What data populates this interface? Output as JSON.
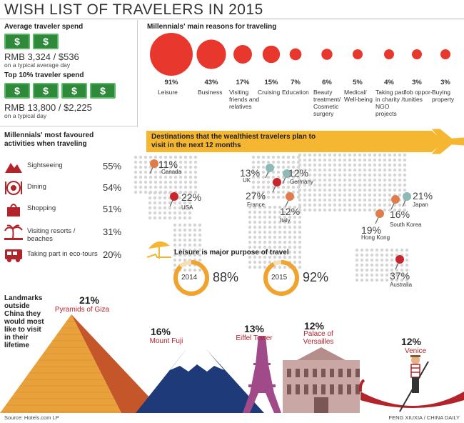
{
  "title": "WISH LIST OF TRAVELERS IN 2015",
  "spend": {
    "avg_heading": "Average traveler spend",
    "avg_amount": "RMB 3,324 / $536",
    "avg_sub": "on a typical average day",
    "top_heading": "Top 10% traveler spend",
    "top_amount": "RMB 13,800 / $2,225",
    "top_sub": "on a typical day",
    "bill_symbol": "$",
    "bill_color": "#2e8a3a"
  },
  "reasons": {
    "heading": "Millennials' main reasons for traveling",
    "color": "#e8382e",
    "items": [
      {
        "pct": "91%",
        "value": 91,
        "label": "Leisure"
      },
      {
        "pct": "43%",
        "value": 43,
        "label": "Business"
      },
      {
        "pct": "17%",
        "value": 17,
        "label": "Visiting friends and relatives"
      },
      {
        "pct": "15%",
        "value": 15,
        "label": "Cruising"
      },
      {
        "pct": "7%",
        "value": 7,
        "label": "Education"
      },
      {
        "pct": "6%",
        "value": 6,
        "label": "Beauty treatment/ Cosmetic surgery"
      },
      {
        "pct": "5%",
        "value": 5,
        "label": "Medical/ Well-being"
      },
      {
        "pct": "4%",
        "value": 4,
        "label": "Taking part in charity / NGO projects"
      },
      {
        "pct": "3%",
        "value": 3,
        "label": "Job oppor- tunities"
      },
      {
        "pct": "3%",
        "value": 3,
        "label": "Buying property"
      }
    ]
  },
  "activities": {
    "heading1": "Millennials' most favoured",
    "heading2": "activities when traveling",
    "icon_color": "#b3242a",
    "items": [
      {
        "label": "Sightseeing",
        "pct": "55%",
        "icon": "mountain-icon"
      },
      {
        "label": "Dining",
        "pct": "54%",
        "icon": "plate-icon"
      },
      {
        "label": "Shopping",
        "pct": "51%",
        "icon": "shopping-bag-icon"
      },
      {
        "label": "Visiting resorts / beaches",
        "pct": "31%",
        "icon": "palm-tree-icon"
      },
      {
        "label": "Taking part in eco-tours",
        "pct": "20%",
        "icon": "bus-icon"
      }
    ]
  },
  "destinations": {
    "banner1": "Destinations that the wealthiest travelers plan to",
    "banner2": "visit in the next 12 months",
    "banner_color": "#f5b731",
    "items": [
      {
        "name": "Canada",
        "pct": "11%",
        "value": 11
      },
      {
        "name": "USA",
        "pct": "22%",
        "value": 22
      },
      {
        "name": "UK",
        "pct": "13%",
        "value": 13
      },
      {
        "name": "Germany",
        "pct": "12%",
        "value": 12
      },
      {
        "name": "France",
        "pct": "27%",
        "value": 27
      },
      {
        "name": "Italy",
        "pct": "12%",
        "value": 12
      },
      {
        "name": "Japan",
        "pct": "21%",
        "value": 21
      },
      {
        "name": "South Korea",
        "pct": "16%",
        "value": 16
      },
      {
        "name": "Hong Kong",
        "pct": "19%",
        "value": 19
      },
      {
        "name": "Australia",
        "pct": "37%",
        "value": 37
      }
    ]
  },
  "leisure": {
    "heading": "Leisure is major purpose of travel",
    "ring_color": "#f0a32e",
    "years": [
      {
        "year": "2014",
        "pct": "88%",
        "value": 88
      },
      {
        "year": "2015",
        "pct": "92%",
        "value": 92
      }
    ]
  },
  "landmarks": {
    "heading": "Landmarks outside China they would most like to visit in their lifetime",
    "heading_lines": [
      "Landmarks",
      "outside",
      "China they",
      "would most",
      "like to visit",
      "in their",
      "lifetime"
    ],
    "items": [
      {
        "name": "Pyramids of Giza",
        "pct": "21%",
        "value": 21
      },
      {
        "name": "Mount Fuji",
        "pct": "16%",
        "value": 16
      },
      {
        "name": "Eiffel Tower",
        "pct": "13%",
        "value": 13
      },
      {
        "name": "Palace of Versailles",
        "name_lines": [
          "Palace of",
          "Versailles"
        ],
        "pct": "12%",
        "value": 12
      },
      {
        "name": "Venice",
        "pct": "12%",
        "value": 12
      }
    ]
  },
  "footer": {
    "source": "Source: Hotels.com LP",
    "credit": "FENG XIUXIA / CHINA DAILY"
  },
  "chart_data": [
    {
      "type": "bubble",
      "title": "Millennials' main reasons for traveling",
      "categories": [
        "Leisure",
        "Business",
        "Visiting friends and relatives",
        "Cruising",
        "Education",
        "Beauty treatment/ Cosmetic surgery",
        "Medical/ Well-being",
        "Taking part in charity / NGO projects",
        "Job oppor- tunities",
        "Buying property"
      ],
      "values": [
        91,
        43,
        17,
        15,
        7,
        6,
        5,
        4,
        3,
        3
      ]
    },
    {
      "type": "table",
      "title": "Millennials' most favoured activities when traveling",
      "categories": [
        "Sightseeing",
        "Dining",
        "Shopping",
        "Visiting resorts / beaches",
        "Taking part in eco-tours"
      ],
      "values": [
        55,
        54,
        51,
        31,
        20
      ]
    },
    {
      "type": "map",
      "title": "Destinations that the wealthiest travelers plan to visit in the next 12 months",
      "categories": [
        "Canada",
        "USA",
        "UK",
        "Germany",
        "France",
        "Italy",
        "Japan",
        "South Korea",
        "Hong Kong",
        "Australia"
      ],
      "values": [
        11,
        22,
        13,
        12,
        27,
        12,
        21,
        16,
        19,
        37
      ]
    },
    {
      "type": "donut",
      "title": "Leisure is major purpose of travel",
      "categories": [
        "2014",
        "2015"
      ],
      "values": [
        88,
        92
      ]
    },
    {
      "type": "table",
      "title": "Landmarks outside China they would most like to visit in their lifetime",
      "categories": [
        "Pyramids of Giza",
        "Mount Fuji",
        "Eiffel Tower",
        "Palace of Versailles",
        "Venice"
      ],
      "values": [
        21,
        16,
        13,
        12,
        12
      ]
    }
  ]
}
